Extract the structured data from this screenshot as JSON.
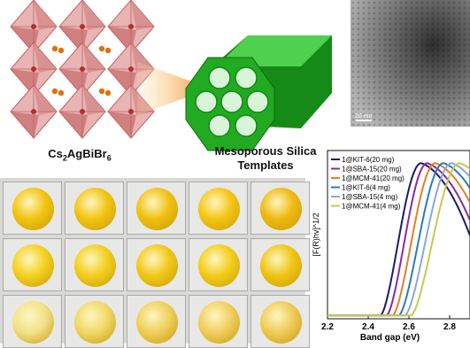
{
  "crystal_formula": {
    "base": "Cs",
    "s1": "2",
    "mid": "AgBiBr",
    "s2": "6"
  },
  "silica_title_line1": "Mesoporous Silica",
  "silica_title_line2": "Templates",
  "tem_scale_label": "20 nm",
  "photo_grid": {
    "rows": [
      [
        "#f1c40f",
        "#f2c512",
        "#f0c010",
        "#f3c615",
        "#efb90e"
      ],
      [
        "#f3d11e",
        "#f2cf1c",
        "#f1c817",
        "#f4cd1a",
        "#f0c514"
      ],
      [
        "#f2e28a",
        "#f1d968",
        "#eed05a",
        "#f0cf60",
        "#efcc58"
      ]
    ]
  },
  "colors": {
    "octahedron_fill": "#e8b4b4",
    "octahedron_edge": "#c46060",
    "cs_atom": "#e07010",
    "silica_green": "#22aa22",
    "silica_dark": "#168a16",
    "silica_light": "#4fd04f",
    "pore": "#d9f5d9"
  },
  "chart_data": {
    "type": "line",
    "xlabel": "Band gap (eV)",
    "ylabel": "[F(R)hv]^1/2",
    "xlim": [
      2.2,
      2.9
    ],
    "x_ticks": [
      "2.2",
      "2.4",
      "2.6",
      "2.8"
    ],
    "series": [
      {
        "name": "1@KIT-6(20 mg)",
        "color": "#1a1a6e",
        "onset": 2.46,
        "peak": 2.66
      },
      {
        "name": "1@SBA-15(20 mg)",
        "color": "#8b2a9b",
        "onset": 2.49,
        "peak": 2.69
      },
      {
        "name": "1@MCM-41(20 mg)",
        "color": "#e0802a",
        "onset": 2.52,
        "peak": 2.73
      },
      {
        "name": "1@KIT-6(4 mg)",
        "color": "#2a7ac0",
        "onset": 2.55,
        "peak": 2.77
      },
      {
        "name": "1@SBA-15(4 mg)",
        "color": "#8aa8d8",
        "onset": 2.58,
        "peak": 2.81
      },
      {
        "name": "1@MCM-41(4 mg)",
        "color": "#c8c850",
        "onset": 2.61,
        "peak": 2.85
      }
    ]
  }
}
